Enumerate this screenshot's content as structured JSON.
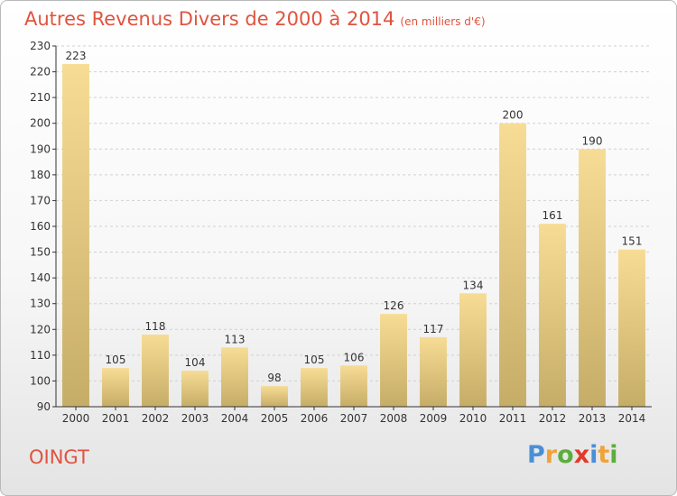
{
  "header": {
    "title": "Autres Revenus Divers de 2000 à 2014",
    "unit": "(en milliers d'€)"
  },
  "footer": {
    "place": "OINGT",
    "logo": "Proxiti"
  },
  "chart_data": {
    "type": "bar",
    "title": "Autres Revenus Divers de 2000 à 2014",
    "xlabel": "",
    "ylabel": "",
    "categories": [
      "2000",
      "2001",
      "2002",
      "2003",
      "2004",
      "2005",
      "2006",
      "2007",
      "2008",
      "2009",
      "2010",
      "2011",
      "2012",
      "2013",
      "2014"
    ],
    "values": [
      223,
      105,
      118,
      104,
      113,
      98,
      105,
      106,
      126,
      117,
      134,
      200,
      161,
      190,
      151
    ],
    "ylim": [
      90,
      230
    ],
    "yticks": [
      90,
      100,
      110,
      120,
      130,
      140,
      150,
      160,
      170,
      180,
      190,
      200,
      210,
      220,
      230
    ],
    "grid": true,
    "colors": {
      "bar_light": "#f7dc95",
      "bar_dark": "#c6ad67",
      "grid": "#d0d0d0",
      "axis": "#333333"
    }
  }
}
